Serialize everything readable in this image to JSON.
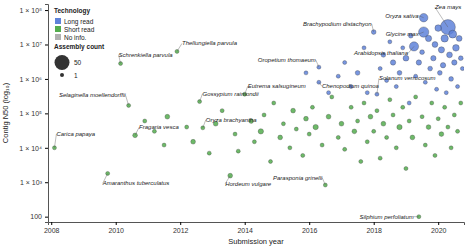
{
  "chart_data": {
    "type": "scatter",
    "x_label": "Submission year",
    "y_label": "Contig N50 (log₁₀)",
    "log": "y",
    "grid": false,
    "legend": "top-left",
    "legend_title": "Technology",
    "xlim": [
      2007.9,
      2020.8
    ],
    "ylim": [
      70,
      150000000
    ],
    "xticks": [
      2008,
      2010,
      2012,
      2014,
      2016,
      2018,
      2020
    ],
    "yticks": [
      100,
      {
        "value": 1000,
        "label": "1 × 10³"
      },
      {
        "value": 10000,
        "label": "1 × 10⁴"
      },
      {
        "value": 100000,
        "label": "1 × 10⁵"
      },
      {
        "value": 1000000,
        "label": "1 × 10⁶"
      },
      {
        "value": 10000000,
        "label": "1 × 10⁷"
      },
      {
        "value": 100000000,
        "label": "1 × 10⁸"
      }
    ],
    "size_legend": {
      "title": "Assembly count",
      "values": [
        50,
        1
      ]
    },
    "series": [
      {
        "name": "Long read",
        "color": "#5f82d9",
        "marker": "circle",
        "x": [
          2015.9,
          2016.3,
          2016.3,
          2016.6,
          2016.9,
          2017.1,
          2017.3,
          2017.5,
          2017.7,
          2017.8,
          2018.0,
          2018.1,
          2018.2,
          2018.3,
          2018.4,
          2018.5,
          2018.6,
          2018.7,
          2018.8,
          2018.9,
          2019.0,
          2019.1,
          2019.15,
          2019.25,
          2019.3,
          2019.4,
          2019.5,
          2019.55,
          2019.55,
          2019.6,
          2019.7,
          2019.75,
          2019.85,
          2019.9,
          2019.95,
          2020.0,
          2020.05,
          2020.1,
          2020.15,
          2020.2,
          2020.25,
          2020.3,
          2020.35,
          2020.4,
          2020.45,
          2020.5,
          2020.55,
          2020.6,
          2020.65,
          2020.7,
          2020.75
        ],
        "values": [
          1500000,
          2200000,
          800000,
          400000,
          1200000,
          3000000,
          600000,
          1500000,
          8000000,
          400000,
          23000000,
          360000,
          2000000,
          5000000,
          900000,
          12000000,
          3000000,
          600000,
          1500000,
          8000000,
          4000000,
          200000,
          18000000,
          8800000,
          1200000,
          3000000,
          6000000,
          23000000,
          60000000,
          800000,
          15000000,
          2000000,
          4000000,
          10000000,
          500000,
          30000000,
          1500000,
          7000000,
          2500000,
          15000000,
          400000,
          32000000,
          5000000,
          1000000,
          20000000,
          3000000,
          8000000,
          600000,
          15000000,
          4000000,
          2000000
        ],
        "sizes": [
          1,
          1,
          1,
          1,
          1,
          1,
          1,
          2,
          1,
          1,
          2,
          1,
          1,
          2,
          1,
          1,
          3,
          1,
          2,
          1,
          4,
          1,
          2,
          15,
          1,
          3,
          2,
          20,
          12,
          1,
          5,
          2,
          3,
          4,
          1,
          6,
          2,
          5,
          3,
          8,
          1,
          50,
          4,
          2,
          10,
          3,
          6,
          1,
          4,
          2,
          1
        ]
      },
      {
        "name": "Short read",
        "color": "#54ad4e",
        "marker": "circle",
        "x": [
          2008.1,
          2009.75,
          2010.15,
          2010.4,
          2010.6,
          2010.9,
          2011.2,
          2011.5,
          2011.6,
          2011.9,
          2012.2,
          2012.4,
          2012.6,
          2012.7,
          2012.9,
          2013.1,
          2013.3,
          2013.55,
          2013.7,
          2013.8,
          2014.0,
          2014.2,
          2014.3,
          2014.5,
          2014.6,
          2014.8,
          2014.9,
          2015.1,
          2015.2,
          2015.4,
          2015.5,
          2015.6,
          2015.8,
          2015.9,
          2016.0,
          2016.1,
          2016.2,
          2016.4,
          2016.5,
          2016.6,
          2016.7,
          2016.9,
          2017.0,
          2017.1,
          2017.3,
          2017.4,
          2017.5,
          2017.6,
          2017.7,
          2017.8,
          2017.9,
          2018.0,
          2018.1,
          2018.2,
          2018.3,
          2018.4,
          2018.5,
          2018.6,
          2018.7,
          2018.8,
          2018.9,
          2019.0,
          2019.1,
          2019.2,
          2019.3,
          2019.4,
          2019.5,
          2019.6,
          2019.7,
          2019.8,
          2019.9,
          2020.0,
          2020.1,
          2020.2,
          2020.3,
          2020.4,
          2020.5,
          2020.6,
          2020.7
        ],
        "values": [
          10000,
          1800,
          2800000,
          170000,
          23000,
          60000,
          30000,
          12000,
          80000,
          6300000,
          40000,
          15000,
          220000,
          38000,
          7000,
          50000,
          120000,
          1550,
          25000,
          8000,
          360000,
          60000,
          15000,
          30000,
          90000,
          4000,
          200000,
          20000,
          50000,
          10000,
          120000,
          35000,
          6000,
          70000,
          25000,
          150000,
          40000,
          12000,
          830,
          80000,
          300000,
          20000,
          50000,
          9000,
          150000,
          30000,
          60000,
          4000,
          200000,
          15000,
          80000,
          30000,
          120000,
          5000,
          50000,
          20000,
          250000,
          90000,
          10000,
          40000,
          150000,
          2500,
          60000,
          20000,
          300000,
          100,
          80000,
          12000,
          40000,
          200000,
          6000,
          70000,
          25000,
          150000,
          40000,
          10000,
          90000,
          30000,
          200000
        ],
        "sizes": [
          1,
          1,
          1,
          1,
          2,
          1,
          1,
          1,
          2,
          1,
          1,
          2,
          1,
          1,
          1,
          2,
          1,
          2,
          1,
          1,
          1,
          2,
          1,
          3,
          1,
          1,
          1,
          2,
          1,
          1,
          2,
          1,
          1,
          2,
          1,
          1,
          3,
          1,
          1,
          2,
          1,
          1,
          2,
          1,
          1,
          2,
          1,
          1,
          1,
          1,
          2,
          1,
          1,
          1,
          2,
          1,
          1,
          1,
          1,
          3,
          1,
          1,
          1,
          2,
          1,
          1,
          1,
          1,
          2,
          1,
          1,
          1,
          2,
          1,
          1,
          1,
          1,
          1,
          1
        ]
      },
      {
        "name": "No info.",
        "color": "#b0b0b0",
        "marker": "circle",
        "x": [],
        "values": [],
        "sizes": []
      }
    ],
    "annotations": [
      {
        "text": "Carica papaya",
        "x": 2008.1,
        "y": 10000
      },
      {
        "text": "Amaranthus tuberculatus",
        "x": 2009.75,
        "y": 1800
      },
      {
        "text": "Schrenkiella parvula",
        "x": 2010.15,
        "y": 2800000
      },
      {
        "text": "Selaginella moellendorffii",
        "x": 2010.4,
        "y": 170000
      },
      {
        "text": "Fragaria vesca",
        "x": 2010.6,
        "y": 23000
      },
      {
        "text": "Thellungiella parvula",
        "x": 2011.9,
        "y": 6300000
      },
      {
        "text": "Gossypium raimondii",
        "x": 2012.6,
        "y": 220000
      },
      {
        "text": "Oryza brachyantha",
        "x": 2012.7,
        "y": 38000
      },
      {
        "text": "Eutrema salsugineum",
        "x": 2014.0,
        "y": 360000
      },
      {
        "text": "Hordeum vulgare",
        "x": 2013.55,
        "y": 1550
      },
      {
        "text": "Oropetium thomaeum",
        "x": 2016.3,
        "y": 2200000
      },
      {
        "text": "Chenopodium quinoa",
        "x": 2016.3,
        "y": 800000
      },
      {
        "text": "Parasponia grinelli",
        "x": 2016.5,
        "y": 830
      },
      {
        "text": "Solanum verrucosum",
        "x": 2018.1,
        "y": 360000
      },
      {
        "text": "Brachypodium distachyon",
        "x": 2018.0,
        "y": 23000000
      },
      {
        "text": "Glycine max",
        "x": 2019.55,
        "y": 23000000
      },
      {
        "text": "Arabidopsis thaliana",
        "x": 2019.25,
        "y": 8800000
      },
      {
        "text": "Oryza sativa",
        "x": 2019.55,
        "y": 60000000
      },
      {
        "text": "Zea mays",
        "x": 2020.3,
        "y": 32000000
      },
      {
        "text": "Silphium perfoliatum",
        "x": 2019.4,
        "y": 100
      }
    ]
  }
}
